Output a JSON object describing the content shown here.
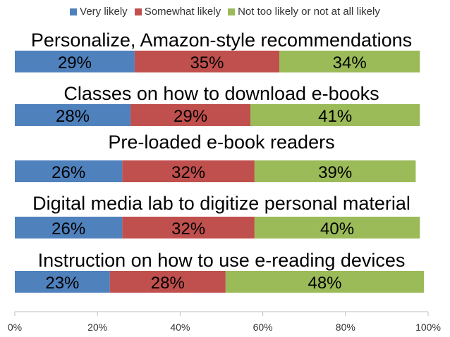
{
  "chart_data": {
    "type": "bar",
    "orientation": "horizontal",
    "stacked": true,
    "categories": [
      "Personalize, Amazon-style recommendations",
      "Classes on how to download e-books",
      "Pre-loaded e-book readers",
      "Digital media lab to digitize personal material",
      "Instruction on how to use e-reading devices"
    ],
    "series": [
      {
        "name": "Very likely",
        "color": "#4F81BD",
        "values": [
          29,
          28,
          26,
          26,
          23
        ]
      },
      {
        "name": "Somewhat likely",
        "color": "#C0504D",
        "values": [
          35,
          29,
          32,
          32,
          28
        ]
      },
      {
        "name": "Not too likely or not at all likely",
        "color": "#9BBB59",
        "values": [
          34,
          41,
          39,
          40,
          48
        ]
      }
    ],
    "value_suffix": "%",
    "xlim": [
      0,
      100
    ],
    "x_ticks": [
      "0%",
      "20%",
      "40%",
      "60%",
      "80%",
      "100%"
    ],
    "legend_position": "top",
    "grid": false
  }
}
